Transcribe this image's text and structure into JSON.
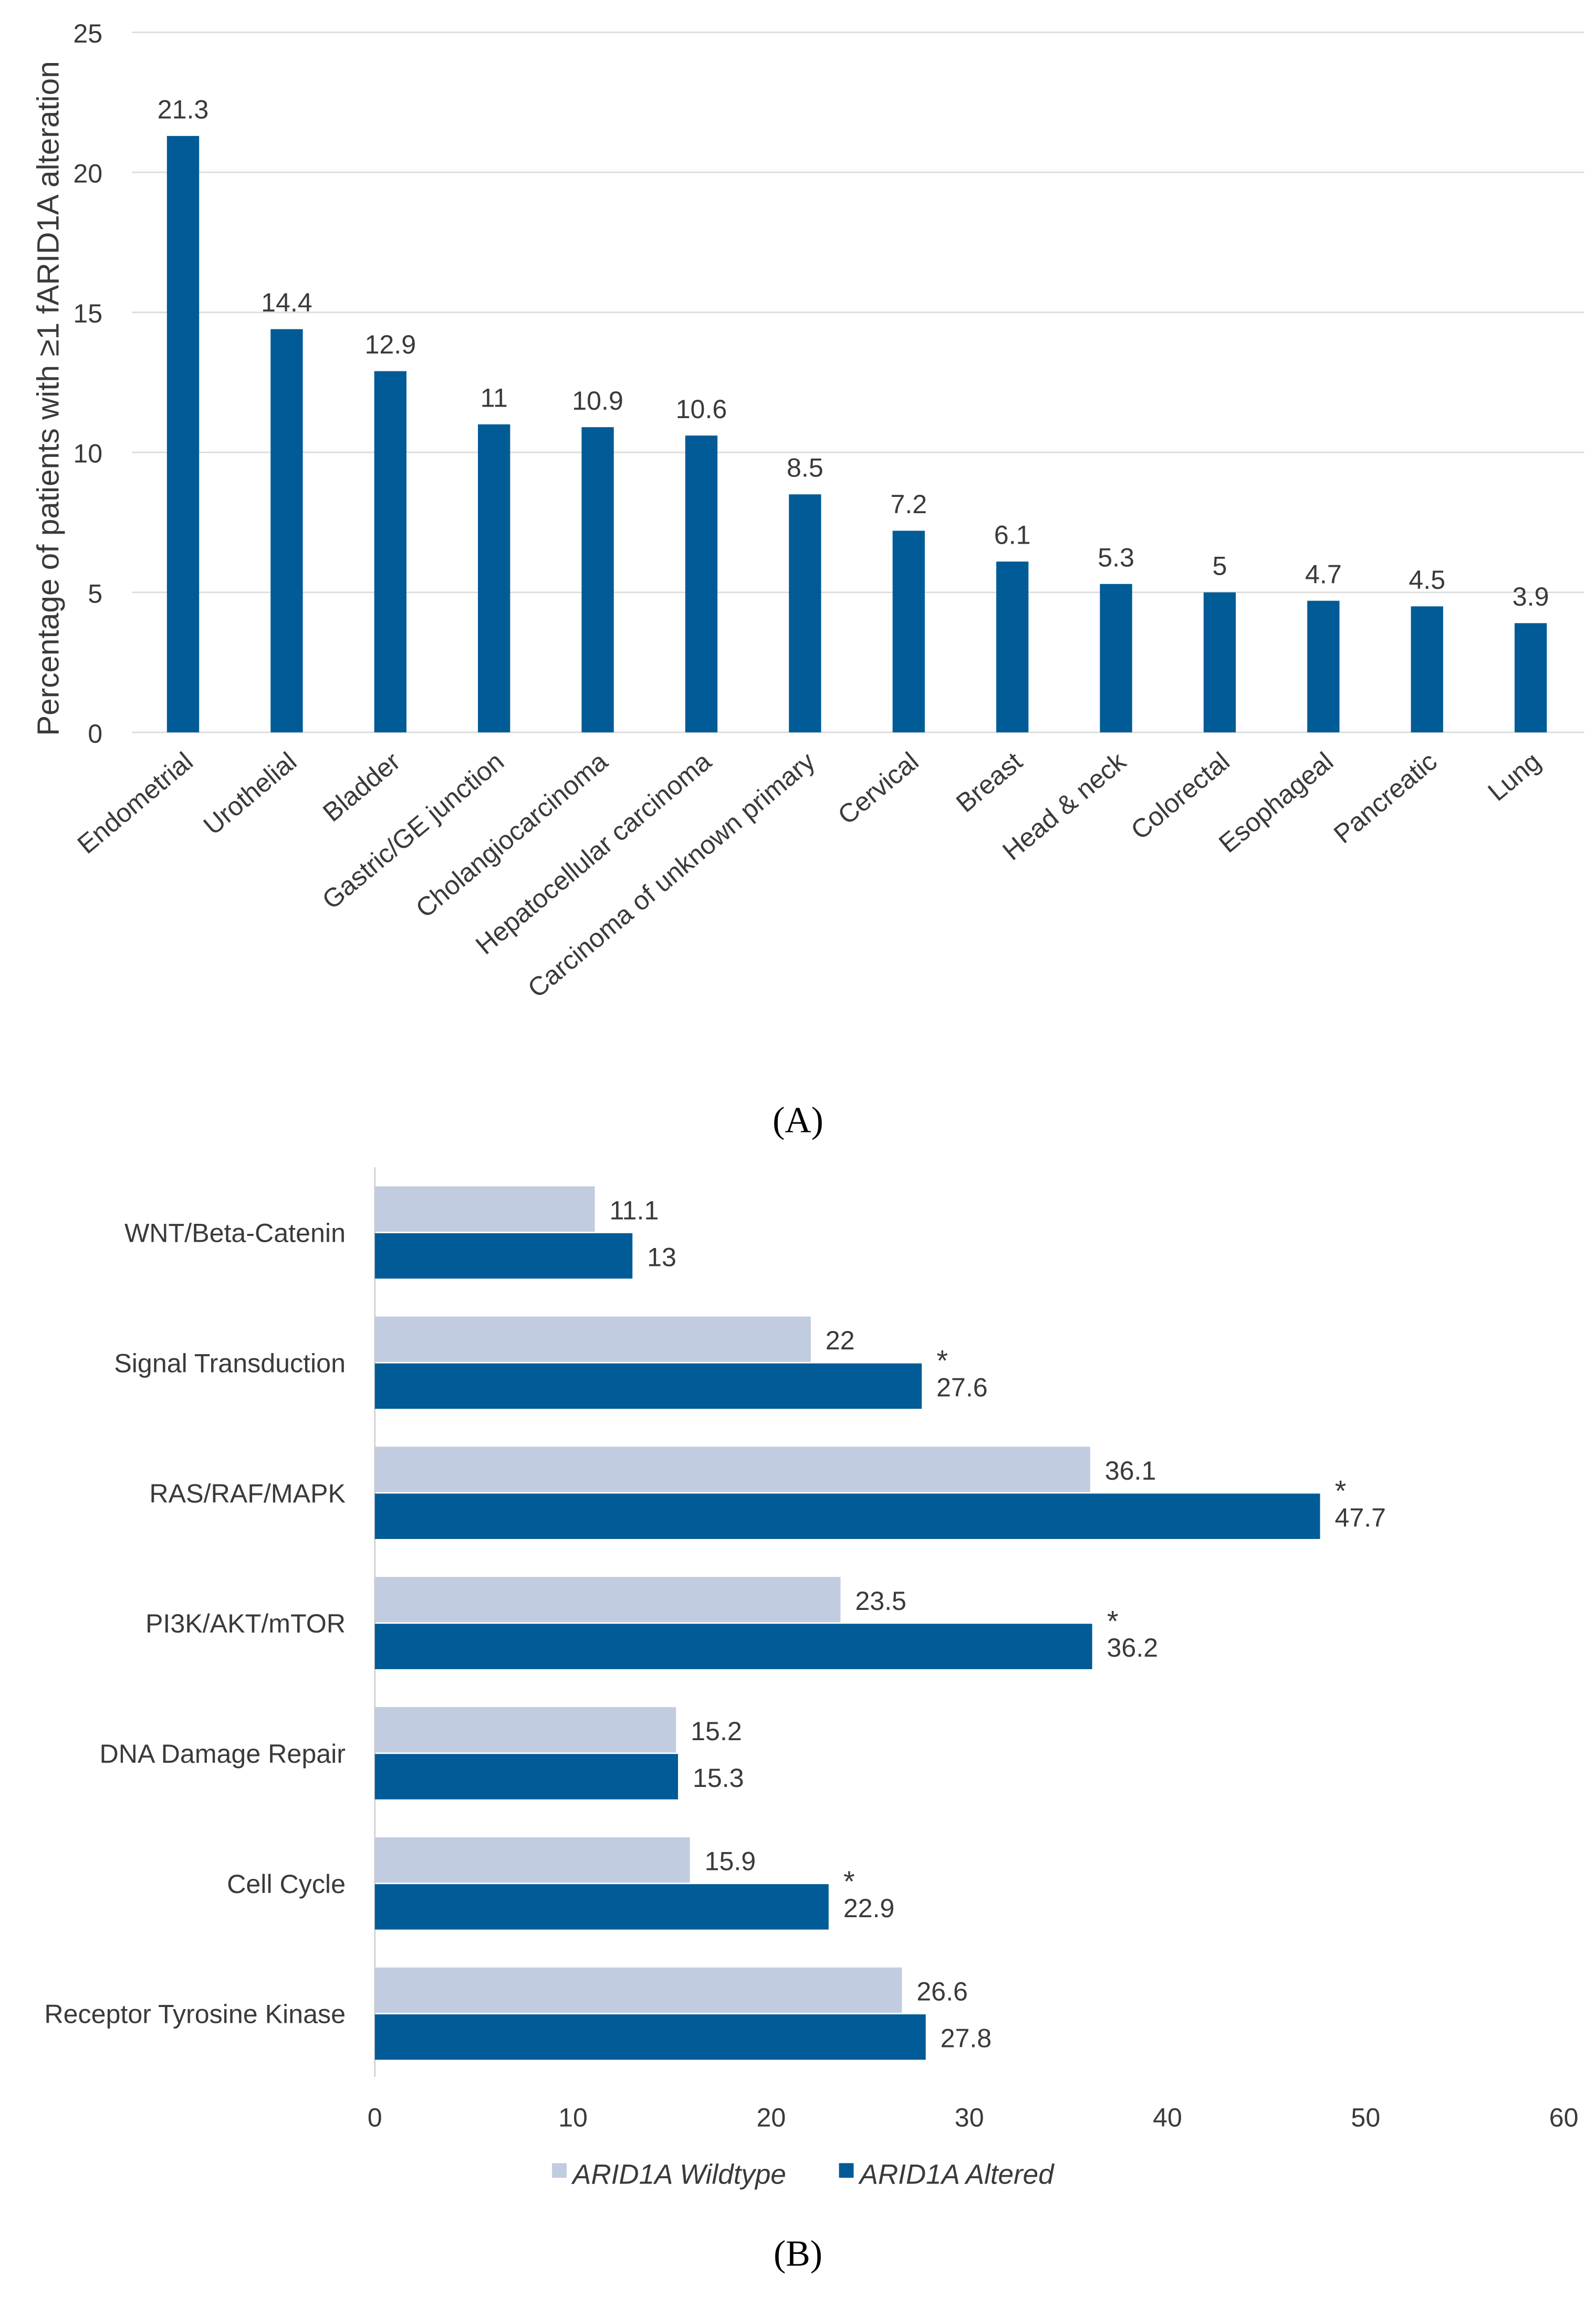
{
  "chart_data": [
    {
      "type": "bar",
      "panel_label": "(A)",
      "ylabel": "Percentage of patients with ≥1 fARID1A alteration",
      "ylim": [
        0,
        25
      ],
      "yticks": [
        0,
        5,
        10,
        15,
        20,
        25
      ],
      "grid": true,
      "categories": [
        "Endometrial",
        "Urothelial",
        "Bladder",
        "Gastric/GE junction",
        "Cholangiocarcinoma",
        "Hepatocellular carcinoma",
        "Carcinoma of unknown primary",
        "Cervical",
        "Breast",
        "Head & neck",
        "Colorectal",
        "Esophageal",
        "Pancreatic",
        "Lung"
      ],
      "values": [
        21.3,
        14.4,
        12.9,
        11,
        10.9,
        10.6,
        8.5,
        7.2,
        6.1,
        5.3,
        5,
        4.7,
        4.5,
        3.9
      ],
      "color": "#005b96"
    },
    {
      "type": "bar",
      "orientation": "horizontal",
      "panel_label": "(B)",
      "xlim": [
        0,
        60
      ],
      "xticks": [
        0,
        10,
        20,
        30,
        40,
        50,
        60
      ],
      "categories": [
        "WNT/Beta-Catenin",
        "Signal Transduction",
        "RAS/RAF/MAPK",
        "PI3K/AKT/mTOR",
        "DNA Damage Repair",
        "Cell Cycle",
        "Receptor Tyrosine Kinase"
      ],
      "series": [
        {
          "name": "ARID1A Wildtype",
          "color": "#c2cce0",
          "values": [
            11.1,
            22,
            36.1,
            23.5,
            15.2,
            15.9,
            26.6
          ]
        },
        {
          "name": "ARID1A Altered",
          "color": "#005b96",
          "values": [
            13,
            27.6,
            47.7,
            36.2,
            15.3,
            22.9,
            27.8
          ]
        }
      ],
      "significance_marker": "*",
      "significant": [
        false,
        true,
        true,
        true,
        false,
        true,
        false
      ],
      "legend_position": "bottom"
    }
  ]
}
